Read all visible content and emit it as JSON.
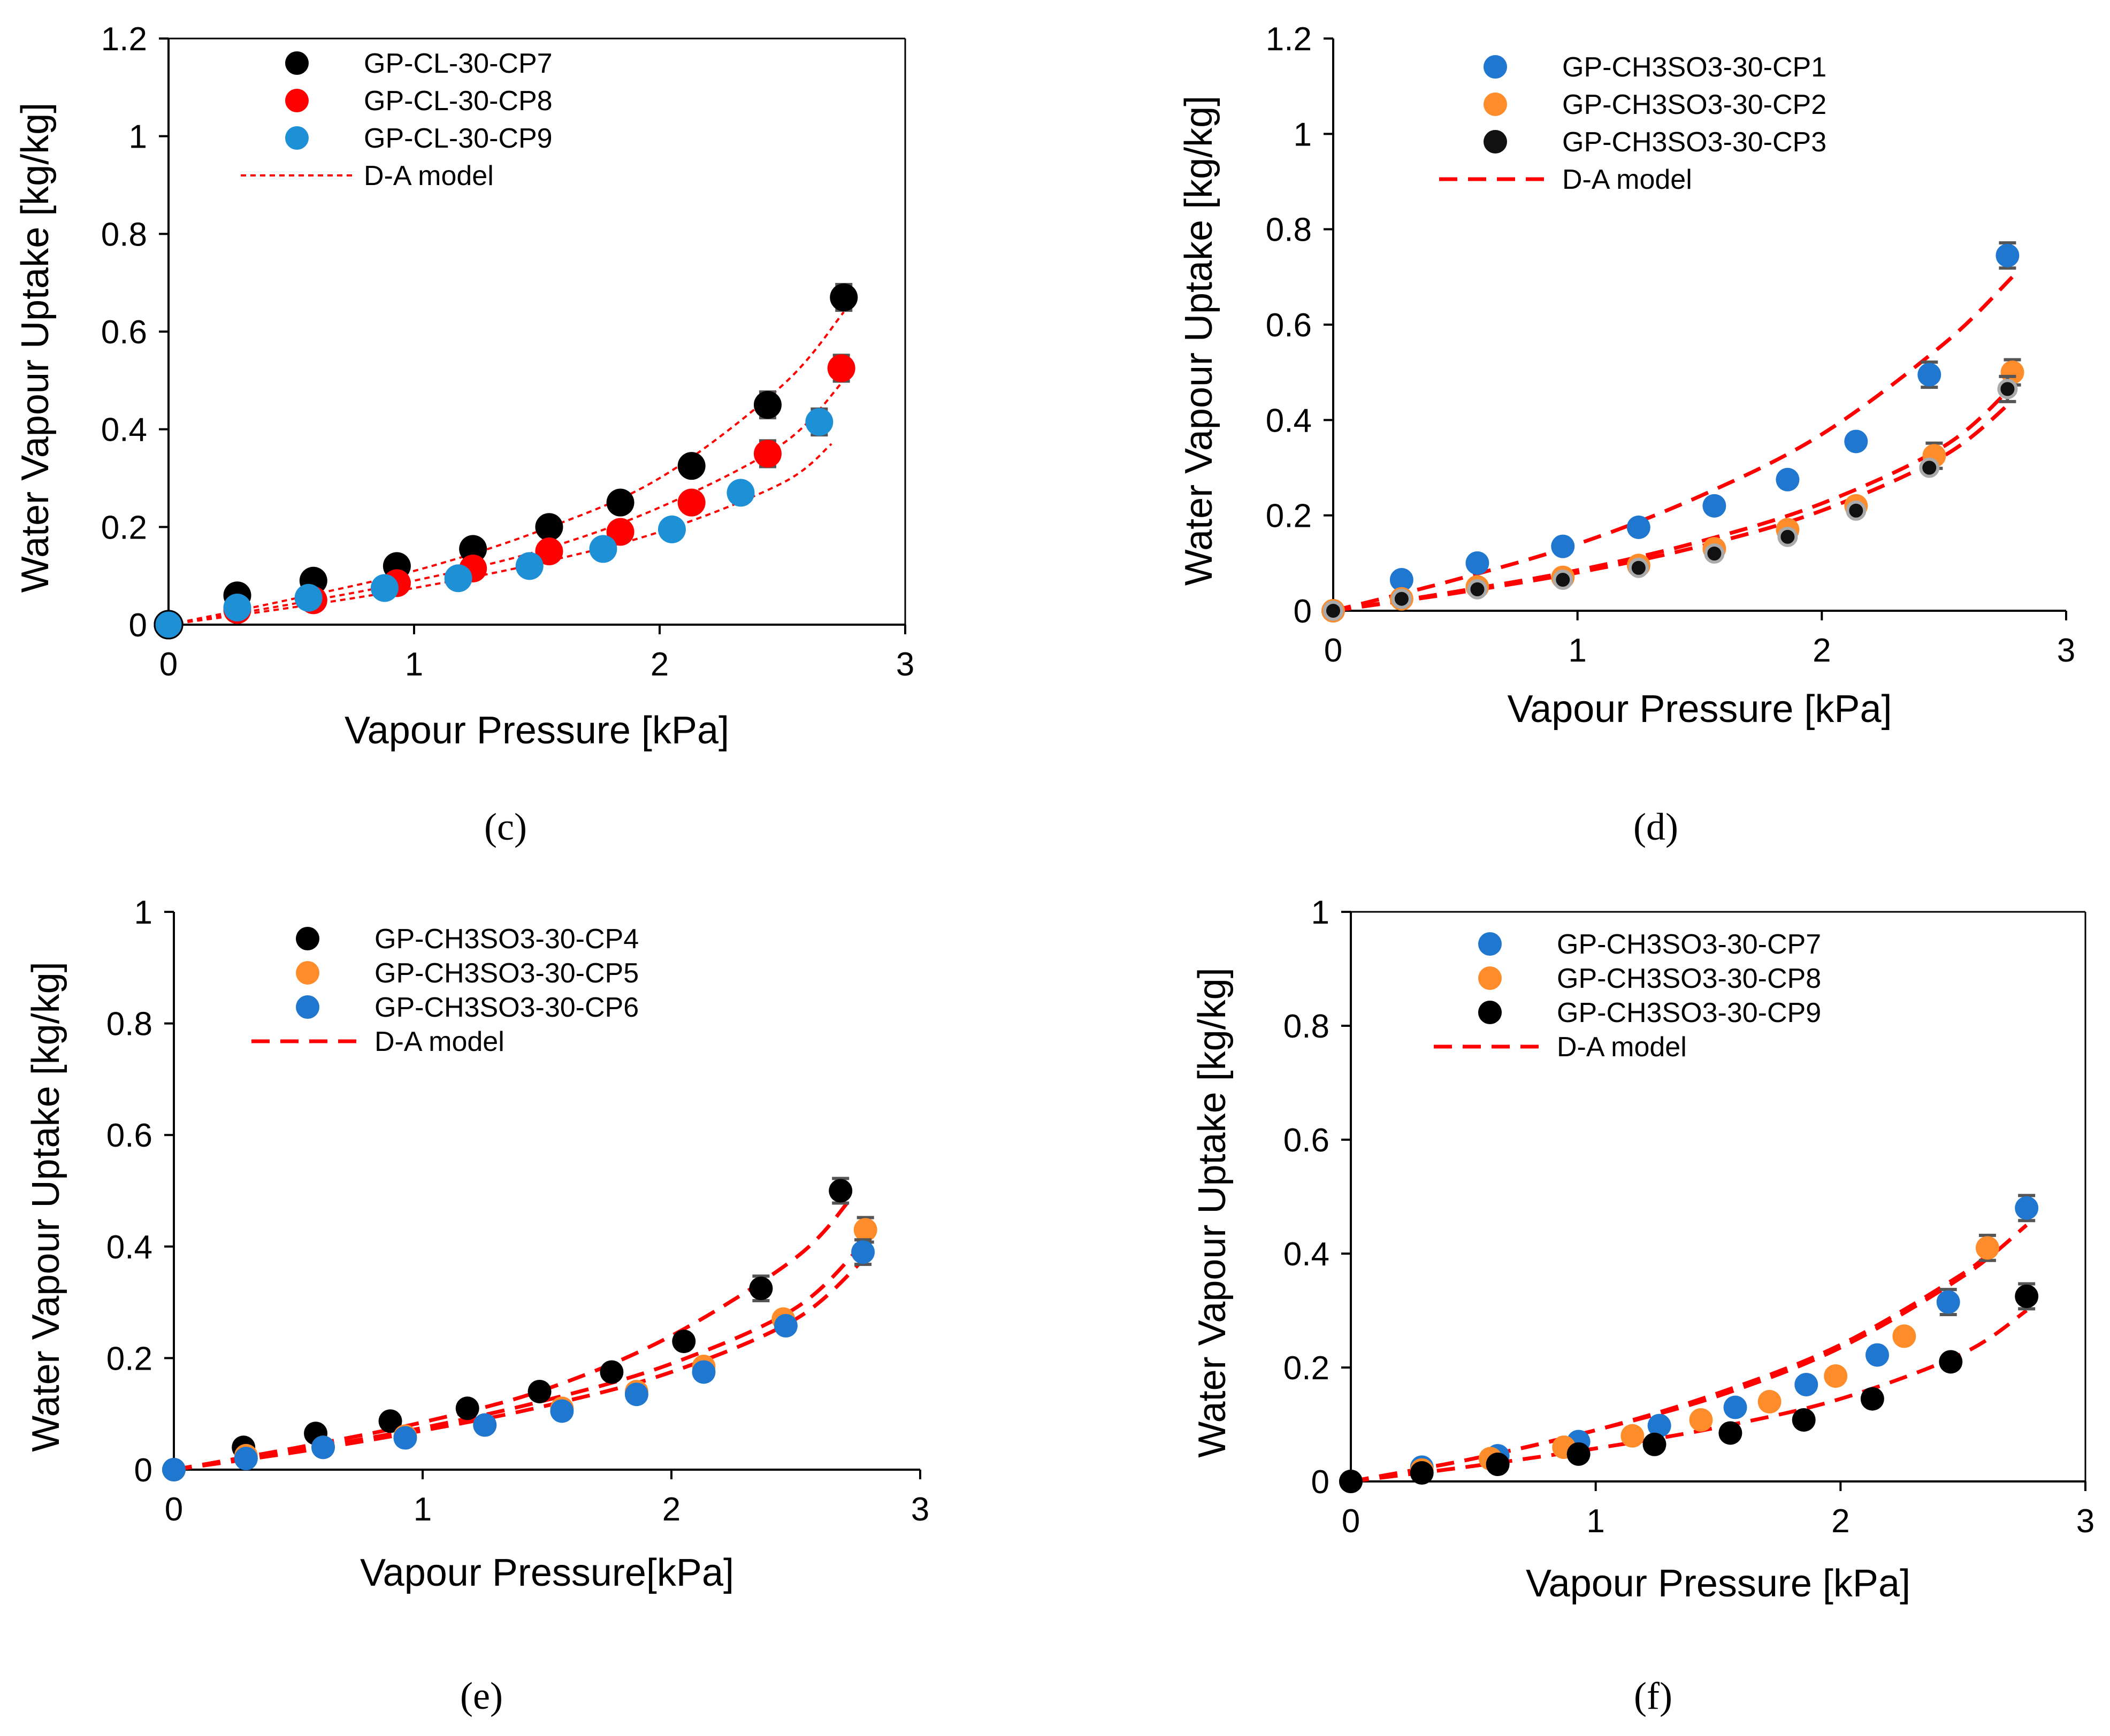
{
  "chart_data": [
    {
      "type": "scatter",
      "panel_label": "(c)",
      "xlabel": "Vapour Pressure [kPa]",
      "ylabel": "Water Vapour Uptake [kg/kg]",
      "xlim": [
        0,
        3
      ],
      "ylim": [
        0,
        1.2
      ],
      "xticks": [
        "0",
        "1",
        "2",
        "3"
      ],
      "yticks": [
        "0",
        "0.2",
        "0.4",
        "0.6",
        "0.8",
        "1",
        "1.2"
      ],
      "legend_position": "top-left",
      "series": [
        {
          "name": "GP-CL-30-CP7",
          "color": "#000000",
          "x": [
            0,
            0.28,
            0.59,
            0.93,
            1.24,
            1.55,
            1.84,
            2.13,
            2.44,
            2.75
          ],
          "y": [
            0,
            0.06,
            0.09,
            0.12,
            0.155,
            0.2,
            0.25,
            0.325,
            0.45,
            0.67
          ]
        },
        {
          "name": "GP-CL-30-CP8",
          "color": "#ff0000",
          "x": [
            0,
            0.28,
            0.59,
            0.93,
            1.24,
            1.55,
            1.84,
            2.13,
            2.44,
            2.74
          ],
          "y": [
            0,
            0.03,
            0.05,
            0.085,
            0.115,
            0.15,
            0.19,
            0.25,
            0.35,
            0.525
          ]
        },
        {
          "name": "GP-CL-30-CP9",
          "color": "#1e90d6",
          "x": [
            0,
            0.28,
            0.57,
            0.88,
            1.18,
            1.47,
            1.77,
            2.05,
            2.33,
            2.65
          ],
          "y": [
            0,
            0.035,
            0.055,
            0.075,
            0.095,
            0.12,
            0.155,
            0.195,
            0.27,
            0.415
          ]
        }
      ],
      "model": {
        "name": "D-A model",
        "color": "#ff0000",
        "style": "dotted",
        "curves": [
          {
            "x": [
              0,
              0.5,
              1,
              1.5,
              2,
              2.5,
              2.75
            ],
            "y": [
              0,
              0.052,
              0.11,
              0.19,
              0.3,
              0.49,
              0.64
            ]
          },
          {
            "x": [
              0,
              0.5,
              1,
              1.5,
              2,
              2.5,
              2.75
            ],
            "y": [
              0,
              0.042,
              0.09,
              0.15,
              0.24,
              0.37,
              0.5
            ]
          },
          {
            "x": [
              0,
              0.5,
              1,
              1.5,
              2,
              2.5,
              2.7
            ],
            "y": [
              0,
              0.035,
              0.075,
              0.125,
              0.19,
              0.29,
              0.37
            ]
          }
        ]
      }
    },
    {
      "type": "scatter",
      "panel_label": "(d)",
      "xlabel": "Vapour Pressure [kPa]",
      "ylabel": "Water Vapour Uptake [kg/kg]",
      "xlim": [
        0,
        3
      ],
      "ylim": [
        0,
        1.2
      ],
      "xticks": [
        "0",
        "1",
        "2",
        "3"
      ],
      "yticks": [
        "0",
        "0.2",
        "0.4",
        "0.6",
        "0.8",
        "1",
        "1.2"
      ],
      "legend_position": "top-left",
      "series": [
        {
          "name": "GP-CH3SO3-30-CP1",
          "color": "#1f77d0",
          "x": [
            0,
            0.28,
            0.59,
            0.94,
            1.25,
            1.56,
            1.86,
            2.14,
            2.44,
            2.76
          ],
          "y": [
            0,
            0.065,
            0.1,
            0.135,
            0.175,
            0.22,
            0.275,
            0.355,
            0.495,
            0.745
          ]
        },
        {
          "name": "GP-CH3SO3-30-CP2",
          "color": "#ff8c2a",
          "x": [
            0,
            0.28,
            0.59,
            0.94,
            1.25,
            1.56,
            1.86,
            2.14,
            2.46,
            2.78
          ],
          "y": [
            0,
            0.025,
            0.05,
            0.07,
            0.095,
            0.13,
            0.17,
            0.22,
            0.325,
            0.5
          ]
        },
        {
          "name": "GP-CH3SO3-30-CP3",
          "color": "#111111",
          "x": [
            0,
            0.28,
            0.59,
            0.94,
            1.25,
            1.56,
            1.86,
            2.14,
            2.44,
            2.76
          ],
          "y": [
            0,
            0.025,
            0.045,
            0.065,
            0.09,
            0.12,
            0.155,
            0.21,
            0.3,
            0.465
          ]
        }
      ],
      "model": {
        "name": "D-A model",
        "color": "#ff0000",
        "style": "dashed",
        "curves": [
          {
            "x": [
              0,
              0.5,
              1,
              1.5,
              2,
              2.5,
              2.78
            ],
            "y": [
              0,
              0.065,
              0.14,
              0.24,
              0.37,
              0.56,
              0.7
            ]
          },
          {
            "x": [
              0,
              0.5,
              1,
              1.5,
              2,
              2.5,
              2.78
            ],
            "y": [
              0,
              0.04,
              0.085,
              0.145,
              0.225,
              0.345,
              0.47
            ]
          },
          {
            "x": [
              0,
              0.5,
              1,
              1.5,
              2,
              2.5,
              2.78
            ],
            "y": [
              0,
              0.037,
              0.08,
              0.135,
              0.21,
              0.325,
              0.44
            ]
          }
        ]
      }
    },
    {
      "type": "scatter",
      "panel_label": "(e)",
      "xlabel": "Vapour Pressure[kPa]",
      "ylabel": "Water Vapour Uptake [kg/kg]",
      "xlim": [
        0,
        3
      ],
      "ylim": [
        0,
        1
      ],
      "xticks": [
        "0",
        "1",
        "2",
        "3"
      ],
      "yticks": [
        "0",
        "0.2",
        "0.4",
        "0.6",
        "0.8",
        "1"
      ],
      "legend_position": "top-left",
      "series": [
        {
          "name": "GP-CH3SO3-30-CP4",
          "color": "#000000",
          "x": [
            0,
            0.28,
            0.57,
            0.87,
            1.18,
            1.47,
            1.76,
            2.05,
            2.36,
            2.68
          ],
          "y": [
            0,
            0.04,
            0.065,
            0.087,
            0.11,
            0.14,
            0.175,
            0.23,
            0.325,
            0.5
          ]
        },
        {
          "name": "GP-CH3SO3-30-CP5",
          "color": "#ff8c2a",
          "x": [
            0,
            0.29,
            0.6,
            0.93,
            1.25,
            1.56,
            1.86,
            2.13,
            2.45,
            2.78
          ],
          "y": [
            0,
            0.025,
            0.04,
            0.06,
            0.08,
            0.11,
            0.14,
            0.185,
            0.27,
            0.43
          ]
        },
        {
          "name": "GP-CH3SO3-30-CP6",
          "color": "#1f77d0",
          "x": [
            0,
            0.29,
            0.6,
            0.93,
            1.25,
            1.56,
            1.86,
            2.13,
            2.46,
            2.77
          ],
          "y": [
            0,
            0.02,
            0.04,
            0.057,
            0.08,
            0.105,
            0.135,
            0.175,
            0.258,
            0.39
          ]
        }
      ],
      "model": {
        "name": "D-A model",
        "color": "#ff0000",
        "style": "dashed",
        "curves": [
          {
            "x": [
              0,
              0.5,
              1,
              1.5,
              2,
              2.5,
              2.72
            ],
            "y": [
              0,
              0.04,
              0.085,
              0.145,
              0.24,
              0.38,
              0.485
            ]
          },
          {
            "x": [
              0,
              0.5,
              1,
              1.5,
              2,
              2.5,
              2.78
            ],
            "y": [
              0,
              0.035,
              0.075,
              0.125,
              0.19,
              0.29,
              0.41
            ]
          },
          {
            "x": [
              0,
              0.5,
              1,
              1.5,
              2,
              2.5,
              2.78
            ],
            "y": [
              0,
              0.032,
              0.07,
              0.115,
              0.175,
              0.27,
              0.38
            ]
          }
        ]
      }
    },
    {
      "type": "scatter",
      "panel_label": "(f)",
      "xlabel": "Vapour Pressure [kPa]",
      "ylabel": "Water Vapour Uptake [kg/kg]",
      "xlim": [
        0,
        3
      ],
      "ylim": [
        0,
        1
      ],
      "xticks": [
        "0",
        "1",
        "2",
        "3"
      ],
      "yticks": [
        "0",
        "0.2",
        "0.4",
        "0.6",
        "0.8",
        "1"
      ],
      "legend_position": "top-left",
      "series": [
        {
          "name": "GP-CH3SO3-30-CP7",
          "color": "#1f77d0",
          "x": [
            0,
            0.29,
            0.6,
            0.93,
            1.26,
            1.57,
            1.86,
            2.15,
            2.44,
            2.76
          ],
          "y": [
            0,
            0.025,
            0.045,
            0.07,
            0.098,
            0.13,
            0.17,
            0.222,
            0.315,
            0.48
          ]
        },
        {
          "name": "GP-CH3SO3-30-CP8",
          "color": "#ff8c2a",
          "x": [
            0,
            0.29,
            0.57,
            0.87,
            1.15,
            1.43,
            1.71,
            1.98,
            2.26,
            2.6
          ],
          "y": [
            0,
            0.02,
            0.04,
            0.06,
            0.08,
            0.108,
            0.14,
            0.185,
            0.255,
            0.41
          ]
        },
        {
          "name": "GP-CH3SO3-30-CP9",
          "color": "#000000",
          "x": [
            0,
            0.29,
            0.6,
            0.93,
            1.24,
            1.55,
            1.85,
            2.13,
            2.45,
            2.76
          ],
          "y": [
            0,
            0.015,
            0.03,
            0.048,
            0.065,
            0.085,
            0.108,
            0.145,
            0.21,
            0.325
          ]
        }
      ],
      "model": {
        "name": "D-A model",
        "color": "#ff0000",
        "style": "dashed",
        "curves": [
          {
            "x": [
              0,
              0.5,
              1,
              1.5,
              2,
              2.5,
              2.76
            ],
            "y": [
              0,
              0.04,
              0.09,
              0.15,
              0.235,
              0.36,
              0.45
            ]
          },
          {
            "x": [
              0,
              0.5,
              1,
              1.5,
              2,
              2.5,
              2.62
            ],
            "y": [
              0,
              0.04,
              0.09,
              0.155,
              0.24,
              0.365,
              0.41
            ]
          },
          {
            "x": [
              0,
              0.5,
              1,
              1.5,
              2,
              2.5,
              2.76
            ],
            "y": [
              0,
              0.027,
              0.058,
              0.095,
              0.145,
              0.225,
              0.3
            ]
          }
        ]
      }
    }
  ]
}
